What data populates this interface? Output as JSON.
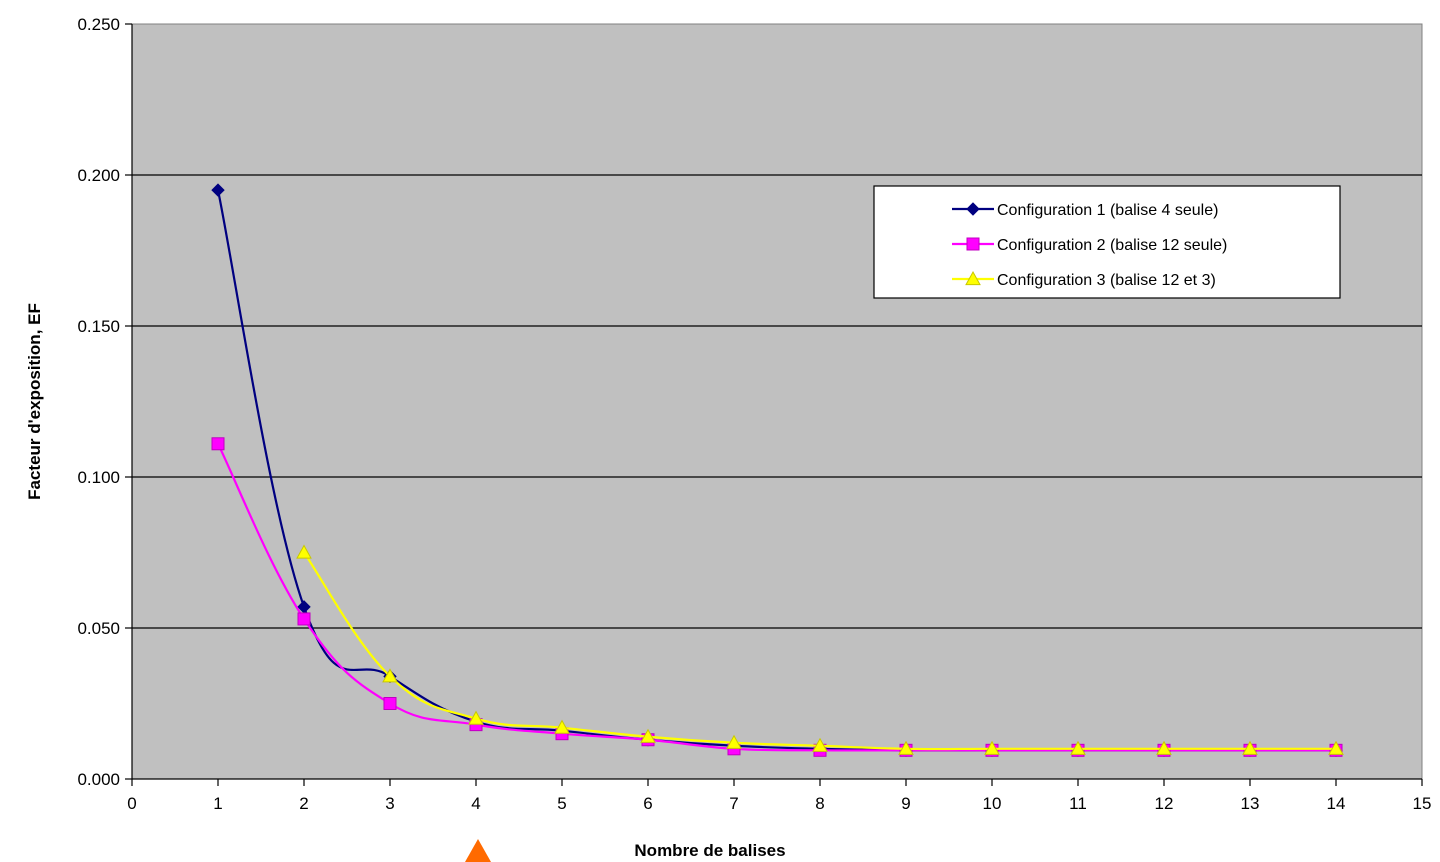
{
  "colors": {
    "plot_background": "#c0c0c0",
    "gridline": "#000000",
    "marker_accent": "#ff6a00"
  },
  "chart_data": {
    "type": "line",
    "xlabel": "Nombre de balises",
    "ylabel": "Facteur d'exposition, EF",
    "xlim": [
      0,
      15
    ],
    "ylim": [
      0,
      0.25
    ],
    "x_ticks": [
      0,
      1,
      2,
      3,
      4,
      5,
      6,
      7,
      8,
      9,
      10,
      11,
      12,
      13,
      14,
      15
    ],
    "y_ticks": [
      "0.000",
      "0.050",
      "0.100",
      "0.150",
      "0.200",
      "0.250"
    ],
    "grid": "horizontal",
    "legend_position": "top-right",
    "highlight_marker": {
      "shape": "triangle",
      "x": 4,
      "color": "#ff6a00"
    },
    "series": [
      {
        "name": "Configuration 1 (balise 4 seule)",
        "color": "#000080",
        "marker": "diamond",
        "x": [
          1,
          2,
          3,
          4,
          5,
          6,
          7,
          8,
          9,
          10,
          11,
          12,
          13,
          14
        ],
        "y": [
          0.195,
          0.057,
          0.034,
          0.019,
          0.016,
          0.013,
          0.011,
          0.01,
          0.0095,
          0.0095,
          0.0095,
          0.0095,
          0.0095,
          0.0095
        ]
      },
      {
        "name": "Configuration 2 (balise 12 seule)",
        "color": "#ff00ff",
        "marker": "square",
        "x": [
          1,
          2,
          3,
          4,
          5,
          6,
          7,
          8,
          9,
          10,
          11,
          12,
          13,
          14
        ],
        "y": [
          0.111,
          0.053,
          0.025,
          0.018,
          0.015,
          0.013,
          0.01,
          0.0095,
          0.0095,
          0.0095,
          0.0095,
          0.0095,
          0.0095,
          0.0095
        ]
      },
      {
        "name": "Configuration 3 (balise 12 et 3)",
        "color": "#ffff00",
        "marker": "triangle",
        "x": [
          2,
          3,
          4,
          5,
          6,
          7,
          8,
          9,
          10,
          11,
          12,
          13,
          14
        ],
        "y": [
          0.075,
          0.034,
          0.02,
          0.017,
          0.014,
          0.012,
          0.011,
          0.01,
          0.01,
          0.01,
          0.01,
          0.01,
          0.01
        ]
      }
    ]
  }
}
